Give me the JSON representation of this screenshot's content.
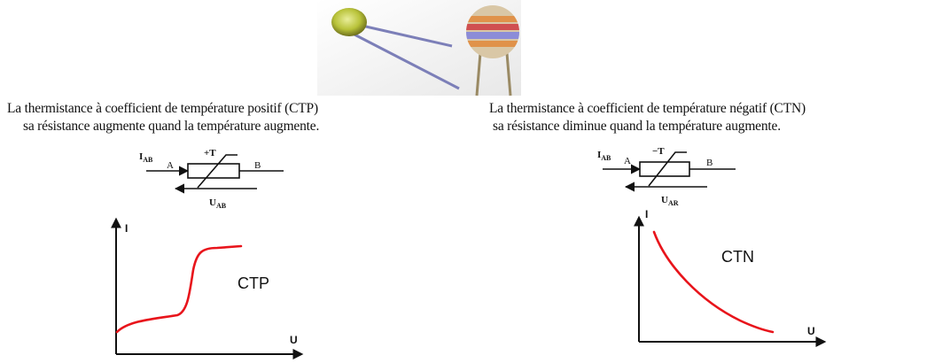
{
  "ctp": {
    "caption_line1": "La thermistance à coefficient de température positif (CTP)",
    "caption_line2": "sa résistance augmente quand la température augmente.",
    "symbol": {
      "current": "I",
      "current_sub": "AB",
      "node_a": "A",
      "node_b": "B",
      "temp": "+T",
      "voltage": "U",
      "voltage_sub": "AB"
    },
    "graph": {
      "y_axis": "I",
      "x_axis": "U",
      "curve_label": "CTP",
      "curve_color": "#e8141b"
    }
  },
  "ctn": {
    "caption_line1": "La thermistance à coefficient de température négatif (CTN)",
    "caption_line2": "sa résistance diminue quand la température augmente.",
    "symbol": {
      "current": "I",
      "current_sub": "AB",
      "node_a": "A",
      "node_b": "B",
      "temp": "−T",
      "voltage": "U",
      "voltage_sub": "AR"
    },
    "graph": {
      "y_axis": "I",
      "x_axis": "U",
      "curve_label": "CTN",
      "curve_color": "#e8141b"
    }
  }
}
